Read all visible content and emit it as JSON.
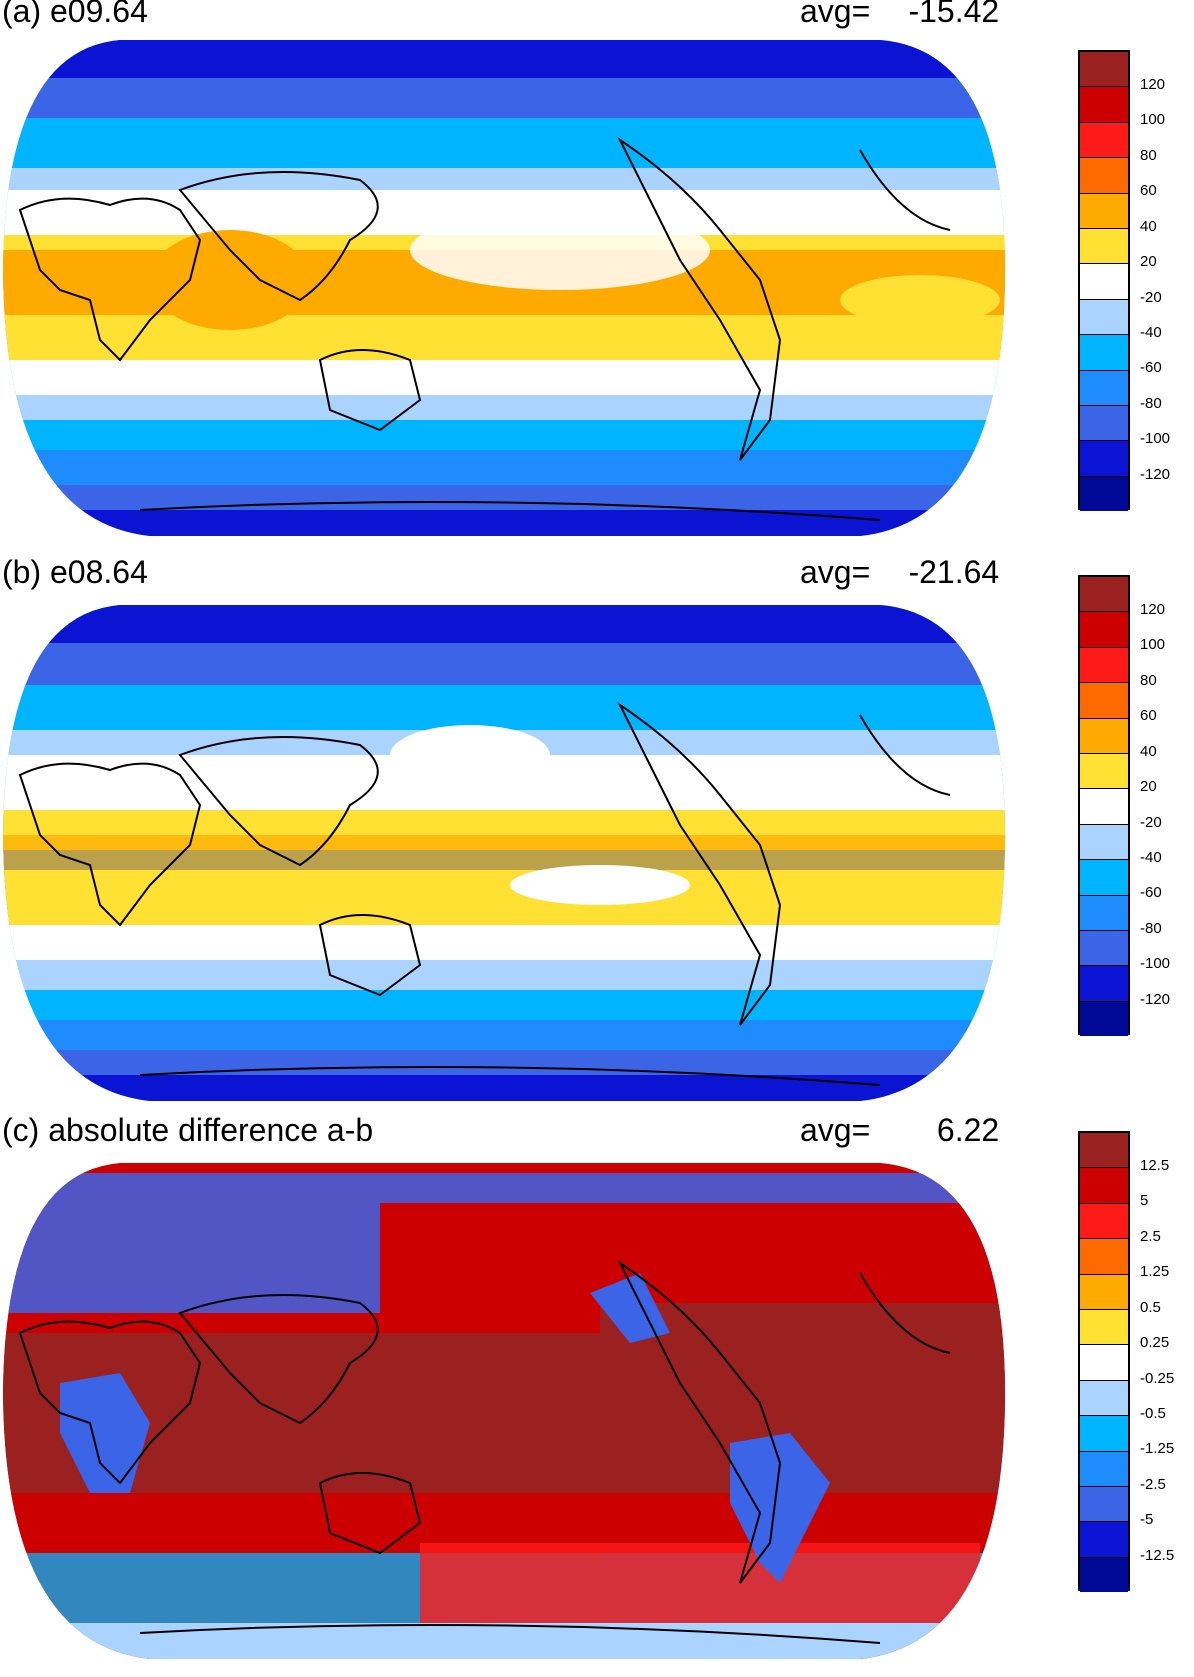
{
  "panels": [
    {
      "id": "a",
      "title": "(a) e09.64",
      "avg_label": "avg=",
      "avg_value": "-15.42",
      "colorbar": {
        "colors": [
          "#9b2020",
          "#cc0000",
          "#ff1a1a",
          "#ff6a00",
          "#ffaa00",
          "#ffe033",
          "#ffffff",
          "#aad4ff",
          "#00b4ff",
          "#1e8cff",
          "#3c64e6",
          "#0a14d2",
          "#000a96"
        ],
        "labels": [
          "120",
          "100",
          "80",
          "60",
          "40",
          "20",
          "-20",
          "-40",
          "-60",
          "-80",
          "-100",
          "-120"
        ]
      }
    },
    {
      "id": "b",
      "title": "(b) e08.64",
      "avg_label": "avg=",
      "avg_value": "-21.64",
      "colorbar": {
        "colors": [
          "#9b2020",
          "#cc0000",
          "#ff1a1a",
          "#ff6a00",
          "#ffaa00",
          "#ffe033",
          "#ffffff",
          "#aad4ff",
          "#00b4ff",
          "#1e8cff",
          "#3c64e6",
          "#0a14d2",
          "#000a96"
        ],
        "labels": [
          "120",
          "100",
          "80",
          "60",
          "40",
          "20",
          "-20",
          "-40",
          "-60",
          "-80",
          "-100",
          "-120"
        ]
      }
    },
    {
      "id": "c",
      "title": "(c) absolute difference a-b",
      "avg_label": "avg=",
      "avg_value": "6.22",
      "colorbar": {
        "colors": [
          "#9b2020",
          "#cc0000",
          "#ff1a1a",
          "#ff6a00",
          "#ffaa00",
          "#ffe033",
          "#ffffff",
          "#aad4ff",
          "#00b4ff",
          "#1e8cff",
          "#3c64e6",
          "#0a14d2",
          "#000a96"
        ],
        "labels": [
          "12.5",
          "5",
          "2.5",
          "1.25",
          "0.5",
          "0.25",
          "-0.25",
          "-0.5",
          "-1.25",
          "-2.5",
          "-5",
          "-12.5"
        ]
      }
    }
  ]
}
